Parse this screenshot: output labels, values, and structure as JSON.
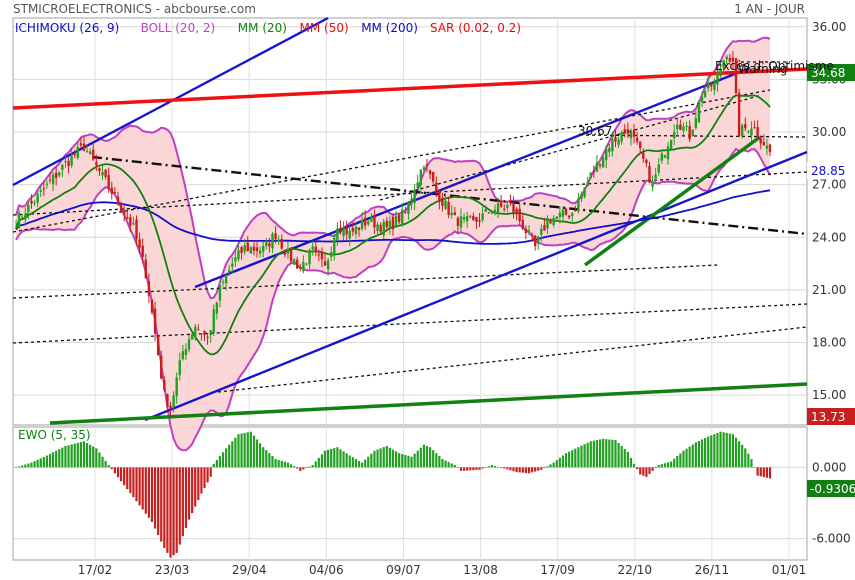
{
  "header": {
    "left": "STMICROELECTRONICS - abcbourse.com",
    "right": "1 AN - JOUR"
  },
  "colors": {
    "ichimoku": "#1010c8",
    "boll": "#c040c0",
    "mm20": "#108010",
    "mm50": "#e01010",
    "mm200": "#1010c8",
    "sar": "#e01010",
    "candle_up": "#20a020",
    "candle_down": "#c81e1e",
    "band_fill": "#fbd6d6",
    "channel": "#1515d0",
    "red_resistance": "#ee1111",
    "green_support": "#138013",
    "ewo_up": "#22a022",
    "ewo_down": "#c81e1e"
  },
  "chart_data": [
    {
      "type": "candlestick",
      "title": "STMICROELECTRONICS",
      "legend": [
        {
          "label": "ICHIMOKU (26, 9)",
          "color": "#1010c8"
        },
        {
          "label": "BOLL (20, 2)",
          "color": "#c040c0"
        },
        {
          "label": "MM (20)",
          "color": "#108010"
        },
        {
          "label": "MM (50)",
          "color": "#e01010"
        },
        {
          "label": "MM (200)",
          "color": "#1010c8"
        },
        {
          "label": "SAR (0.02, 0.2)",
          "color": "#e01010"
        }
      ],
      "ylim": [
        13.3,
        36.5
      ],
      "y_ticks": [
        "15.00",
        "18.00",
        "21.00",
        "24.00",
        "27.00",
        "30.00",
        "33.00",
        "36.00"
      ],
      "x_ticks": [
        "17/02",
        "23/03",
        "29/04",
        "04/06",
        "09/07",
        "13/08",
        "17/09",
        "22/10",
        "26/11",
        "01/01"
      ],
      "price_key": [
        [
          0,
          24.9
        ],
        [
          8,
          26.5
        ],
        [
          16,
          28.2
        ],
        [
          22,
          29.2
        ],
        [
          26,
          28.0
        ],
        [
          32,
          26.3
        ],
        [
          38,
          24.5
        ],
        [
          42,
          22.0
        ],
        [
          45,
          18.5
        ],
        [
          48,
          15.0
        ],
        [
          50,
          14.3
        ],
        [
          54,
          17.5
        ],
        [
          58,
          19.0
        ],
        [
          62,
          18.2
        ],
        [
          66,
          21.0
        ],
        [
          70,
          22.5
        ],
        [
          74,
          23.4
        ],
        [
          80,
          23.3
        ],
        [
          84,
          24.2
        ],
        [
          88,
          23.0
        ],
        [
          92,
          22.3
        ],
        [
          96,
          23.2
        ],
        [
          100,
          22.2
        ],
        [
          104,
          24.8
        ],
        [
          108,
          24.2
        ],
        [
          114,
          25.0
        ],
        [
          120,
          24.5
        ],
        [
          126,
          25.4
        ],
        [
          132,
          28.3
        ],
        [
          136,
          26.6
        ],
        [
          142,
          25.0
        ],
        [
          148,
          24.8
        ],
        [
          154,
          25.6
        ],
        [
          160,
          25.8
        ],
        [
          164,
          24.7
        ],
        [
          168,
          23.4
        ],
        [
          172,
          25.0
        ],
        [
          176,
          25.2
        ],
        [
          180,
          25.4
        ],
        [
          186,
          27.5
        ],
        [
          192,
          29.3
        ],
        [
          198,
          30.2
        ],
        [
          202,
          28.8
        ],
        [
          206,
          27.0
        ],
        [
          210,
          29.0
        ],
        [
          214,
          30.7
        ],
        [
          218,
          29.8
        ],
        [
          222,
          32.2
        ],
        [
          226,
          32.8
        ],
        [
          230,
          34.6
        ],
        [
          232,
          33.8
        ],
        [
          234,
          30.0
        ],
        [
          238,
          30.4
        ],
        [
          242,
          29.4
        ],
        [
          244,
          28.85
        ]
      ],
      "last_close": "28.85",
      "markers": [
        {
          "label": "34.68",
          "color": "#108010"
        },
        {
          "label": "28.85",
          "color": "#1010c8"
        },
        {
          "label": "13.73",
          "color": "#c81e1e"
        }
      ],
      "annotations": [
        "30.67",
        "Excès d' Optimisme",
        "Warning"
      ]
    },
    {
      "type": "bar",
      "title": "EWO (5, 35)",
      "ylim": [
        -7.8,
        3.4
      ],
      "y_ticks": [
        "0.000",
        "-6.000"
      ],
      "last_value": "-0.9306",
      "ewo_key": [
        [
          0,
          0.0
        ],
        [
          5,
          0.4
        ],
        [
          10,
          1.0
        ],
        [
          16,
          1.8
        ],
        [
          22,
          2.2
        ],
        [
          26,
          1.6
        ],
        [
          30,
          0.2
        ],
        [
          32,
          -0.5
        ],
        [
          38,
          -2.5
        ],
        [
          44,
          -4.6
        ],
        [
          48,
          -6.8
        ],
        [
          50,
          -7.6
        ],
        [
          52,
          -7.2
        ],
        [
          56,
          -4.4
        ],
        [
          60,
          -2.2
        ],
        [
          63,
          -0.8
        ],
        [
          64,
          0.3
        ],
        [
          68,
          1.6
        ],
        [
          72,
          2.8
        ],
        [
          76,
          3.0
        ],
        [
          80,
          1.7
        ],
        [
          84,
          0.7
        ],
        [
          88,
          0.4
        ],
        [
          90,
          0.1
        ],
        [
          92,
          -0.3
        ],
        [
          96,
          0.2
        ],
        [
          100,
          1.4
        ],
        [
          104,
          1.7
        ],
        [
          108,
          1.0
        ],
        [
          112,
          0.4
        ],
        [
          116,
          1.4
        ],
        [
          120,
          1.8
        ],
        [
          124,
          1.2
        ],
        [
          128,
          0.9
        ],
        [
          132,
          1.9
        ],
        [
          134,
          1.7
        ],
        [
          138,
          0.7
        ],
        [
          142,
          0.2
        ],
        [
          144,
          -0.3
        ],
        [
          150,
          -0.2
        ],
        [
          154,
          0.2
        ],
        [
          158,
          -0.1
        ],
        [
          162,
          -0.4
        ],
        [
          166,
          -0.5
        ],
        [
          170,
          -0.2
        ],
        [
          174,
          0.4
        ],
        [
          178,
          1.2
        ],
        [
          182,
          1.7
        ],
        [
          186,
          2.2
        ],
        [
          190,
          2.4
        ],
        [
          194,
          2.3
        ],
        [
          198,
          1.3
        ],
        [
          200,
          0.3
        ],
        [
          202,
          -0.6
        ],
        [
          204,
          -0.8
        ],
        [
          208,
          0.2
        ],
        [
          212,
          0.5
        ],
        [
          216,
          1.4
        ],
        [
          220,
          2.1
        ],
        [
          224,
          2.6
        ],
        [
          228,
          3.0
        ],
        [
          232,
          2.8
        ],
        [
          236,
          1.6
        ],
        [
          238,
          0.7
        ],
        [
          240,
          -0.7
        ],
        [
          244,
          -0.93
        ]
      ]
    }
  ]
}
